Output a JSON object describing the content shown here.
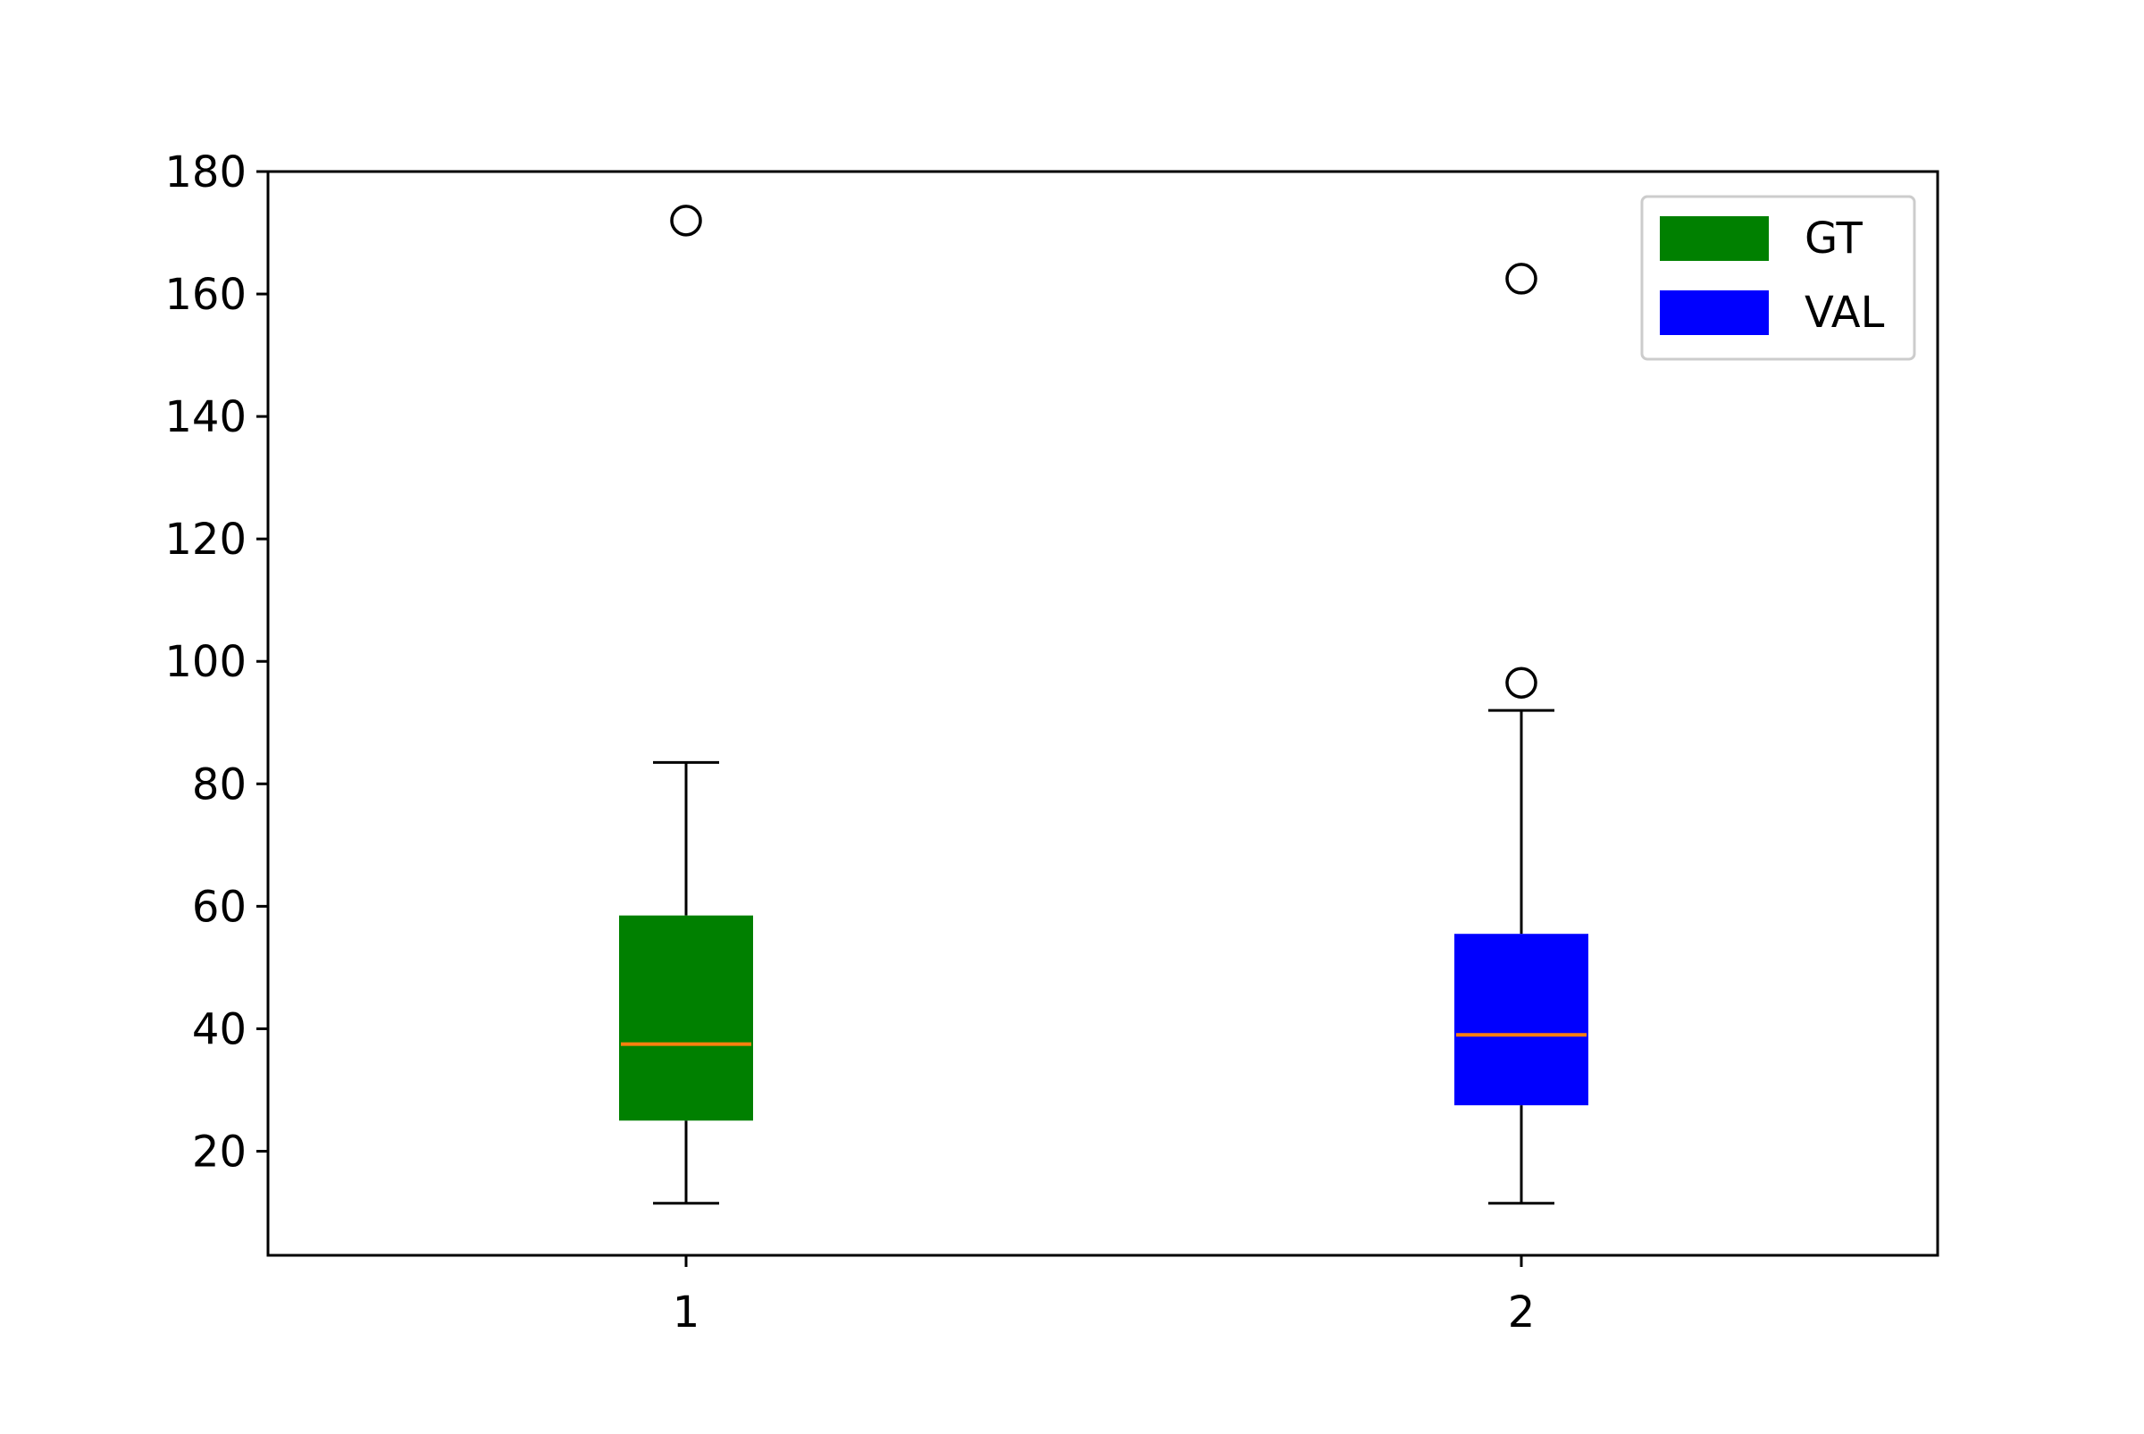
{
  "chart_data": {
    "type": "box",
    "categories": [
      "1",
      "2"
    ],
    "ylim": [
      3,
      180
    ],
    "y_ticks": [
      20,
      40,
      60,
      80,
      100,
      120,
      140,
      160,
      180
    ],
    "grid": false,
    "legend_placement": "top-right",
    "series": [
      {
        "name": "GT",
        "color": "#008000",
        "category": "1",
        "whisker_low": 11.5,
        "q1": 25,
        "median": 37.5,
        "q3": 58.5,
        "whisker_high": 83.5,
        "outliers": [
          172
        ]
      },
      {
        "name": "VAL",
        "color": "#0000ff",
        "category": "2",
        "whisker_low": 11.5,
        "q1": 27.5,
        "median": 39,
        "q3": 55.5,
        "whisker_high": 92,
        "outliers": [
          96.5,
          162.5
        ]
      }
    ],
    "median_color": "#ff7f0e"
  }
}
